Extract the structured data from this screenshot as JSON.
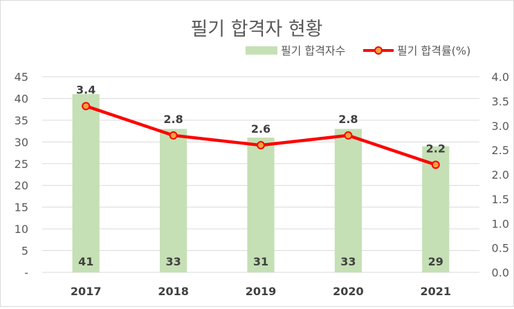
{
  "chart_data": {
    "type": "bar+line",
    "title": "필기 합격자 현황",
    "categories": [
      "2017",
      "2018",
      "2019",
      "2020",
      "2021"
    ],
    "series": [
      {
        "name": "필기 합격자수",
        "type": "bar",
        "axis": "left",
        "values": [
          41,
          33,
          31,
          33,
          29
        ],
        "color": "#c5e0b4",
        "label_color": "#404040"
      },
      {
        "name": "필기 합격률(%)",
        "type": "line",
        "axis": "right",
        "values": [
          3.4,
          2.8,
          2.6,
          2.8,
          2.2
        ],
        "value_labels": [
          "3.4",
          "2.8",
          "2.6",
          "2.8",
          "2.2"
        ],
        "color": "#ff0000",
        "marker_color": "#f4a33c"
      }
    ],
    "left_axis": {
      "ylim": [
        0,
        45
      ],
      "ticks": [
        0,
        5,
        10,
        15,
        20,
        25,
        30,
        35,
        40,
        45
      ],
      "tick_labels": [
        "-",
        "5",
        "10",
        "15",
        "20",
        "25",
        "30",
        "35",
        "40",
        "45"
      ]
    },
    "right_axis": {
      "ylim": [
        0,
        4.0
      ],
      "ticks": [
        0,
        0.5,
        1,
        1.5,
        2,
        2.5,
        3,
        3.5,
        4
      ],
      "tick_labels": [
        "0.0",
        "0.5",
        "1.0",
        "1.5",
        "2.0",
        "2.5",
        "3.0",
        "3.5",
        "4.0"
      ]
    },
    "grid": true,
    "legend_position": "top-right",
    "xlabel": "",
    "ylabel": ""
  }
}
